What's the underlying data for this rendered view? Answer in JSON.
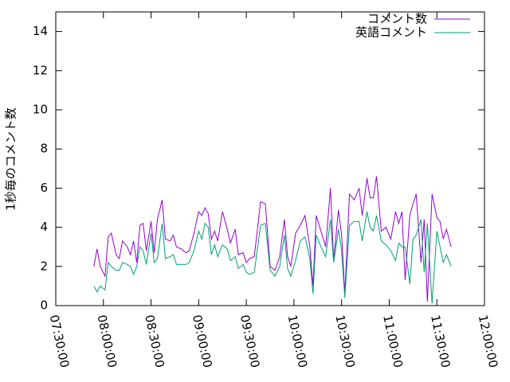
{
  "chart_data": {
    "type": "line",
    "ylabel": "1秒毎のコメント数",
    "x": [
      "07:54:00",
      "07:56:00",
      "07:58:00",
      "08:01:00",
      "08:03:00",
      "08:05:00",
      "08:08:00",
      "08:10:00",
      "08:12:00",
      "08:15:00",
      "08:17:00",
      "08:19:00",
      "08:21:00",
      "08:23:00",
      "08:25:00",
      "08:27:00",
      "08:30:00",
      "08:32:00",
      "08:34:00",
      "08:37:00",
      "08:39:00",
      "08:42:00",
      "08:44:00",
      "08:46:00",
      "08:49:00",
      "08:52:00",
      "08:54:00",
      "08:57:00",
      "09:00:00",
      "09:02:00",
      "09:04:00",
      "09:06:00",
      "09:08:00",
      "09:10:00",
      "09:12:00",
      "09:15:00",
      "09:18:00",
      "09:20:00",
      "09:23:00",
      "09:25:00",
      "09:28:00",
      "09:30:00",
      "09:32:00",
      "09:35:00",
      "09:39:00",
      "09:42:00",
      "09:45:00",
      "09:48:00",
      "09:51:00",
      "09:54:00",
      "09:56:00",
      "09:58:00",
      "10:01:00",
      "10:04:00",
      "10:07:00",
      "10:10:00",
      "10:12:00",
      "10:14:00",
      "10:17:00",
      "10:20:00",
      "10:23:00",
      "10:25:00",
      "10:28:00",
      "10:30:00",
      "10:32:00",
      "10:35:00",
      "10:38:00",
      "10:41:00",
      "10:43:00",
      "10:46:00",
      "10:48:00",
      "10:50:00",
      "10:52:00",
      "10:55:00",
      "10:58:00",
      "11:01:00",
      "11:04:00",
      "11:06:00",
      "11:08:00",
      "11:10:00",
      "11:13:00",
      "11:15:00",
      "11:17:00",
      "11:20:00",
      "11:22:00",
      "11:24:00",
      "11:27:00",
      "11:30:00",
      "11:32:00",
      "11:34:00",
      "11:36:00",
      "11:39:00"
    ],
    "series": [
      {
        "name": "コメント数",
        "color": "#9400d3",
        "values": [
          2.0,
          2.9,
          2.0,
          1.5,
          3.5,
          3.7,
          2.6,
          2.4,
          3.3,
          3.0,
          2.6,
          3.3,
          2.2,
          4.1,
          4.2,
          2.8,
          4.3,
          2.7,
          4.4,
          5.4,
          3.4,
          3.3,
          3.6,
          3.0,
          2.9,
          2.7,
          2.8,
          3.7,
          4.8,
          4.6,
          5.0,
          4.7,
          3.4,
          3.8,
          3.3,
          4.8,
          3.9,
          3.2,
          3.9,
          2.6,
          2.7,
          2.2,
          2.4,
          2.5,
          5.3,
          5.2,
          2.0,
          1.8,
          2.5,
          4.4,
          2.5,
          2.0,
          3.7,
          4.1,
          4.6,
          3.0,
          1.0,
          4.6,
          3.8,
          3.0,
          6.0,
          2.3,
          4.9,
          3.6,
          0.6,
          5.7,
          5.4,
          6.0,
          4.6,
          6.5,
          5.5,
          5.5,
          6.6,
          3.8,
          4.0,
          3.4,
          4.8,
          4.2,
          4.8,
          1.3,
          4.6,
          5.2,
          5.7,
          2.2,
          4.4,
          0.2,
          5.7,
          4.5,
          4.3,
          3.4,
          3.9,
          3.0
        ]
      },
      {
        "name": "英語コメント",
        "color": "#009e73",
        "values": [
          1.0,
          0.7,
          1.0,
          0.8,
          2.2,
          2.0,
          1.8,
          1.8,
          2.2,
          2.1,
          2.0,
          1.6,
          2.0,
          3.0,
          2.8,
          2.1,
          3.7,
          2.2,
          2.4,
          4.2,
          2.4,
          2.5,
          2.6,
          2.1,
          2.1,
          2.1,
          2.2,
          2.8,
          3.8,
          3.4,
          4.2,
          4.0,
          2.6,
          3.1,
          2.5,
          3.1,
          2.9,
          2.3,
          2.5,
          1.9,
          2.1,
          1.7,
          1.6,
          1.7,
          4.1,
          4.2,
          1.8,
          1.5,
          2.0,
          3.6,
          1.9,
          1.5,
          2.3,
          3.3,
          3.5,
          2.4,
          0.6,
          3.6,
          3.0,
          2.5,
          4.4,
          2.2,
          3.9,
          2.8,
          0.4,
          4.1,
          4.3,
          4.3,
          3.3,
          4.8,
          4.0,
          3.8,
          4.6,
          3.3,
          3.1,
          2.8,
          2.3,
          3.2,
          3.0,
          3.0,
          1.1,
          3.4,
          3.6,
          4.4,
          1.7,
          4.2,
          0.1,
          3.8,
          3.0,
          2.2,
          2.6,
          2.0
        ]
      }
    ],
    "xlim": [
      "07:30:00",
      "12:00:00"
    ],
    "xticks": [
      "07:30:00",
      "08:00:00",
      "08:30:00",
      "09:00:00",
      "09:30:00",
      "10:00:00",
      "10:30:00",
      "11:00:00",
      "11:30:00",
      "12:00:00"
    ],
    "ylim": [
      0,
      15
    ],
    "yticks": [
      0,
      2,
      4,
      6,
      8,
      10,
      12,
      14
    ],
    "legend": "top-right"
  }
}
